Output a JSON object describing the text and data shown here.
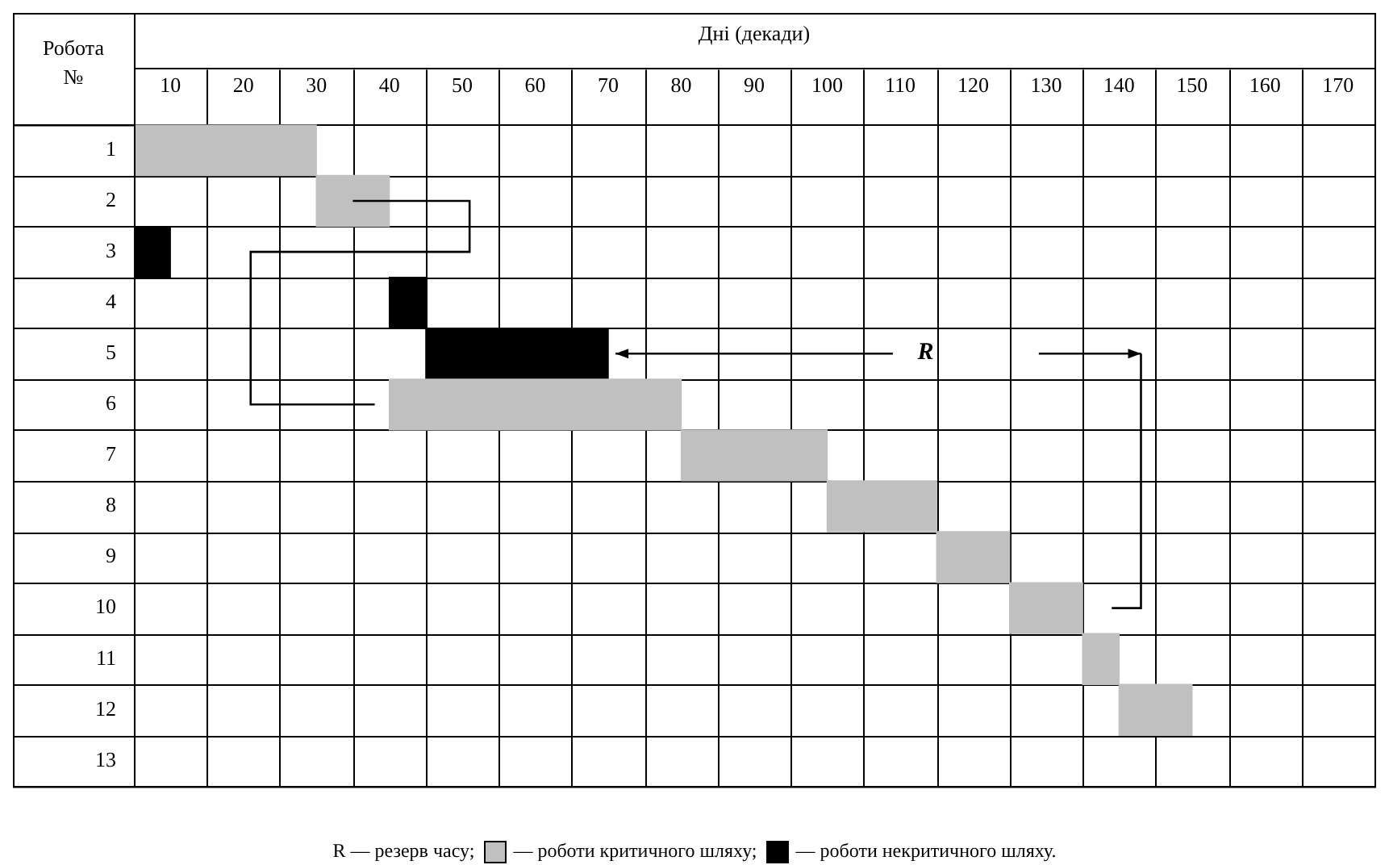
{
  "chart_data": {
    "type": "bar",
    "orientation": "horizontal",
    "xlabel": "Дні (декади)",
    "ylabel": "Робота №",
    "categories": [
      "1",
      "2",
      "3",
      "4",
      "5",
      "6",
      "7",
      "8",
      "9",
      "10",
      "11",
      "12",
      "13"
    ],
    "series": [
      {
        "name": "— роботи критичного шляху;",
        "color": "#c0c0c0",
        "base": [
          5,
          30,
          null,
          null,
          null,
          40,
          80,
          100,
          115,
          125,
          135,
          140,
          null
        ],
        "values": [
          25,
          10,
          null,
          null,
          null,
          40,
          20,
          15,
          10,
          10,
          5,
          10,
          null
        ]
      },
      {
        "name": "— роботи некритичного шляху.",
        "color": "#000000",
        "base": [
          null,
          null,
          5,
          40,
          45,
          null,
          null,
          null,
          null,
          null,
          null,
          null,
          null
        ],
        "values": [
          null,
          null,
          5,
          5,
          25,
          null,
          null,
          null,
          null,
          null,
          null,
          null,
          null
        ]
      }
    ],
    "xlim": [
      5,
      175
    ],
    "xticks": [
      10,
      20,
      30,
      40,
      50,
      60,
      70,
      80,
      90,
      100,
      110,
      120,
      130,
      140,
      150,
      160,
      170
    ],
    "grid": true,
    "legend": "bottom",
    "annotations": [
      "R",
      "R — резерв часу;"
    ]
  }
}
